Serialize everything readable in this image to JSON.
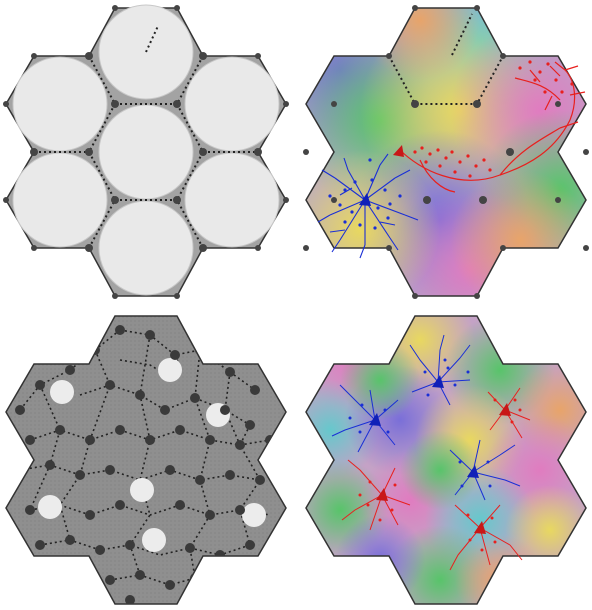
{
  "figure": {
    "panels": [
      {
        "id": "top-left",
        "kind": "hex-cells",
        "fill": "#9a9a9a",
        "disc": "#e8e8e8"
      },
      {
        "id": "top-right",
        "kind": "colored-map-neurons",
        "neurons": [
          "blue",
          "red"
        ]
      },
      {
        "id": "bottom-left",
        "kind": "dense-grid",
        "fill": "#8e8e8e"
      },
      {
        "id": "bottom-right",
        "kind": "colored-map-many-neurons",
        "neurons": [
          "blue",
          "red"
        ]
      }
    ],
    "colors": {
      "outline": "#333333",
      "vertex": "#444444",
      "excitatory": "#e8201e",
      "inhibitory": "#1a2fd6",
      "disc": "#e8e8e8",
      "panel_gray": "#9a9a9a",
      "panel_gray_dark": "#8b8b8b"
    }
  }
}
